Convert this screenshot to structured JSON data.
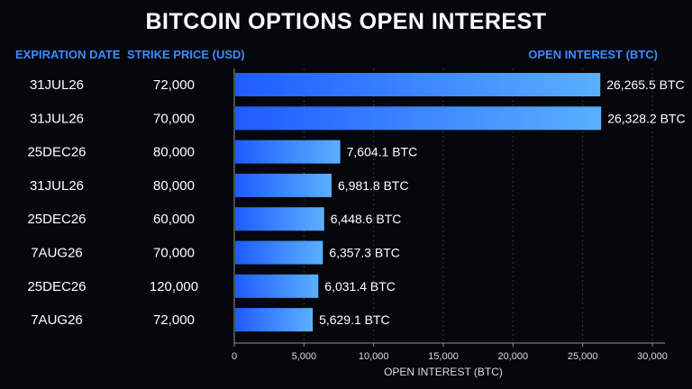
{
  "title": "BITCOIN OPTIONS OPEN INTEREST",
  "headers": {
    "expiration": "EXPIRATION DATE",
    "strike": "STRIKE PRICE (USD)",
    "open_interest": "OPEN INTEREST (BTC)"
  },
  "colors": {
    "background": "#05070c",
    "header_blue": "#3d8bff",
    "bar_start": "#1f5cff",
    "bar_end": "#5ab0ff",
    "grid": "#2f343c"
  },
  "chart_data": {
    "type": "bar",
    "orientation": "horizontal",
    "title": "BITCOIN OPTIONS OPEN INTEREST",
    "xlabel": "OPEN INTEREST (BTC)",
    "xlim": [
      0,
      30000
    ],
    "x_ticks": [
      0,
      5000,
      10000,
      15000,
      20000,
      25000,
      30000
    ],
    "x_tick_labels": [
      "0",
      "5,000",
      "10,000",
      "15,000",
      "20,000",
      "25,000",
      "30,000"
    ],
    "grid": "vertical dotted",
    "rows": [
      {
        "expiration": "31JUL26",
        "strike": "72,000",
        "value": 26265.5,
        "label": "26,265.5 BTC"
      },
      {
        "expiration": "31JUL26",
        "strike": "70,000",
        "value": 26328.2,
        "label": "26,328.2 BTC"
      },
      {
        "expiration": "25DEC26",
        "strike": "80,000",
        "value": 7604.1,
        "label": "7,604.1 BTC"
      },
      {
        "expiration": "31JUL26",
        "strike": "80,000",
        "value": 6981.8,
        "label": "6,981.8 BTC"
      },
      {
        "expiration": "25DEC26",
        "strike": "60,000",
        "value": 6448.6,
        "label": "6,448.6 BTC"
      },
      {
        "expiration": "7AUG26",
        "strike": "70,000",
        "value": 6357.3,
        "label": "6,357.3 BTC"
      },
      {
        "expiration": "25DEC26",
        "strike": "120,000",
        "value": 6031.4,
        "label": "6,031.4 BTC"
      },
      {
        "expiration": "7AUG26",
        "strike": "72,000",
        "value": 5629.1,
        "label": "5,629.1 BTC"
      }
    ]
  }
}
